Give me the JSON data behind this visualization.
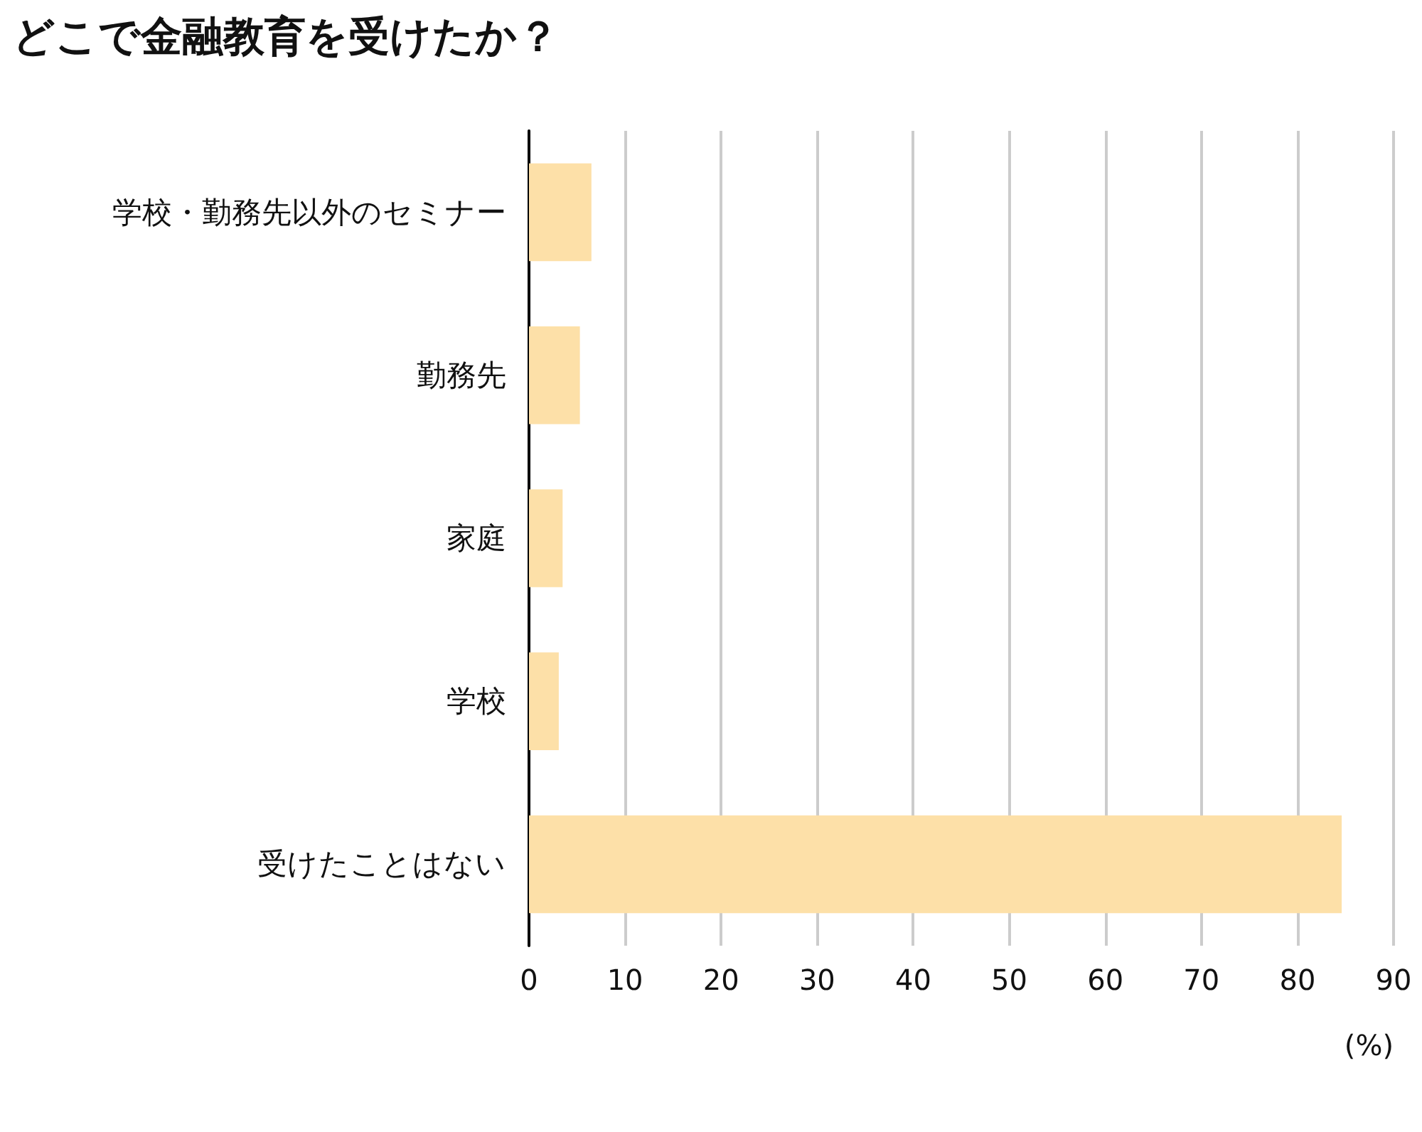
{
  "chart_data": {
    "type": "bar",
    "orientation": "horizontal",
    "title": "どこで金融教育を受けたか？",
    "xlabel": "(%)",
    "categories": [
      "学校・勤務先以外のセミナー",
      "勤務先",
      "家庭",
      "学校",
      "受けたことはない"
    ],
    "values": [
      6.5,
      5.3,
      3.5,
      3.1,
      84.6
    ],
    "color": "#fde0a8",
    "xlim": [
      0,
      90
    ],
    "xticks": [
      0,
      10,
      20,
      30,
      40,
      50,
      60,
      70,
      80,
      90
    ],
    "grid": "x"
  }
}
